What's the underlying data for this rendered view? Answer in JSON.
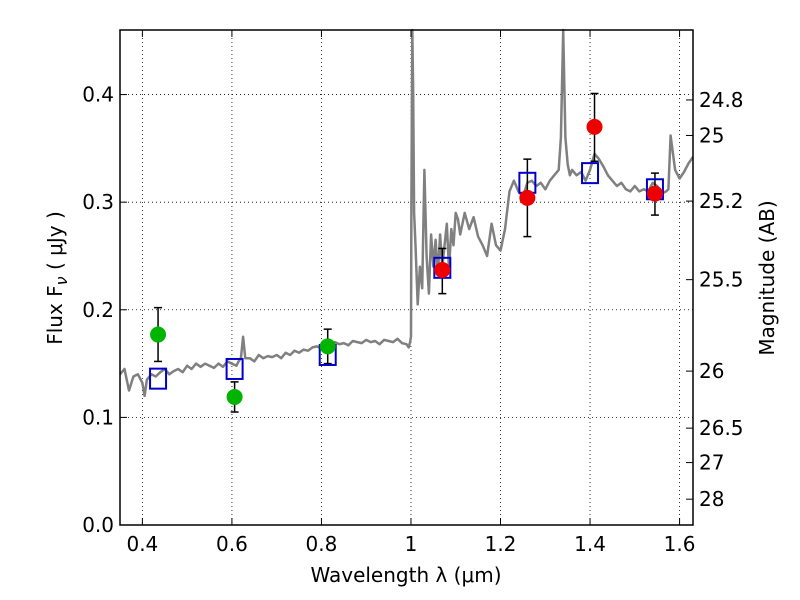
{
  "chart_data": {
    "type": "scatter",
    "xlabel": "Wavelength  λ (μm)",
    "ylabel": "Flux  F",
    "ylabel_sub": "ν",
    "ylabel_unit": "  ( μJy )",
    "y2label": "Magnitude (AB)",
    "xlim": [
      0.35,
      1.63
    ],
    "ylim": [
      0.0,
      0.46
    ],
    "x_ticks": [
      0.4,
      0.6,
      0.8,
      1.0,
      1.2,
      1.4,
      1.6
    ],
    "x_tick_labels": [
      "0.4",
      "0.6",
      "0.8",
      "1",
      "1.2",
      "1.4",
      "1.6"
    ],
    "y_ticks": [
      0.0,
      0.1,
      0.2,
      0.3,
      0.4
    ],
    "y_tick_labels": [
      "0.0",
      "0.1",
      "0.2",
      "0.3",
      "0.4"
    ],
    "y2_ticks": [
      {
        "label": "24.8",
        "flux": 0.395
      },
      {
        "label": "25",
        "flux": 0.362
      },
      {
        "label": "25.2",
        "flux": 0.301
      },
      {
        "label": "25.5",
        "flux": 0.228
      },
      {
        "label": "26",
        "flux": 0.143
      },
      {
        "label": "26.5",
        "flux": 0.09
      },
      {
        "label": "27",
        "flux": 0.058
      },
      {
        "label": "28",
        "flux": 0.024
      }
    ],
    "grid": true,
    "colors": {
      "model": "#808080",
      "model_points": "#0000cc",
      "optical_obs": "#00b400",
      "nir_obs": "#ee0000",
      "errorbar": "#000000"
    },
    "series": [
      {
        "role": "observed-optical",
        "marker": "circle",
        "points": [
          {
            "x": 0.435,
            "y": 0.177,
            "yerr_lo": 0.152,
            "yerr_hi": 0.202
          },
          {
            "x": 0.606,
            "y": 0.119,
            "yerr_lo": 0.105,
            "yerr_hi": 0.133
          },
          {
            "x": 0.814,
            "y": 0.166,
            "yerr_lo": 0.15,
            "yerr_hi": 0.182
          }
        ]
      },
      {
        "role": "observed-nir",
        "marker": "circle",
        "points": [
          {
            "x": 1.07,
            "y": 0.237,
            "yerr_lo": 0.215,
            "yerr_hi": 0.257
          },
          {
            "x": 1.26,
            "y": 0.304,
            "yerr_lo": 0.268,
            "yerr_hi": 0.34
          },
          {
            "x": 1.41,
            "y": 0.37,
            "yerr_lo": 0.338,
            "yerr_hi": 0.401
          },
          {
            "x": 1.545,
            "y": 0.308,
            "yerr_lo": 0.288,
            "yerr_hi": 0.327
          }
        ]
      },
      {
        "role": "model-synthetic-photometry",
        "marker": "open-square",
        "points": [
          {
            "x": 0.435,
            "y": 0.136
          },
          {
            "x": 0.606,
            "y": 0.145
          },
          {
            "x": 0.814,
            "y": 0.158
          },
          {
            "x": 1.07,
            "y": 0.239
          },
          {
            "x": 1.26,
            "y": 0.318
          },
          {
            "x": 1.4,
            "y": 0.327
          },
          {
            "x": 1.545,
            "y": 0.312
          }
        ]
      },
      {
        "role": "model-sed",
        "marker": "line",
        "x": [
          0.35,
          0.36,
          0.37,
          0.38,
          0.39,
          0.4,
          0.405,
          0.41,
          0.42,
          0.43,
          0.44,
          0.45,
          0.46,
          0.47,
          0.48,
          0.49,
          0.5,
          0.51,
          0.52,
          0.53,
          0.54,
          0.55,
          0.56,
          0.57,
          0.58,
          0.59,
          0.6,
          0.61,
          0.615,
          0.62,
          0.625,
          0.63,
          0.64,
          0.65,
          0.66,
          0.67,
          0.68,
          0.69,
          0.7,
          0.71,
          0.72,
          0.73,
          0.74,
          0.75,
          0.76,
          0.77,
          0.78,
          0.79,
          0.8,
          0.81,
          0.82,
          0.83,
          0.84,
          0.85,
          0.86,
          0.87,
          0.88,
          0.89,
          0.9,
          0.91,
          0.92,
          0.93,
          0.94,
          0.95,
          0.96,
          0.97,
          0.98,
          0.99,
          0.995,
          0.998,
          1.0,
          1.001,
          1.003,
          1.005,
          1.007,
          1.01,
          1.015,
          1.02,
          1.025,
          1.03,
          1.035,
          1.04,
          1.045,
          1.05,
          1.055,
          1.06,
          1.065,
          1.07,
          1.08,
          1.085,
          1.09,
          1.095,
          1.1,
          1.105,
          1.11,
          1.12,
          1.13,
          1.14,
          1.15,
          1.16,
          1.17,
          1.18,
          1.19,
          1.2,
          1.21,
          1.22,
          1.23,
          1.24,
          1.25,
          1.26,
          1.27,
          1.28,
          1.29,
          1.3,
          1.31,
          1.32,
          1.33,
          1.335,
          1.34,
          1.345,
          1.35,
          1.355,
          1.36,
          1.37,
          1.38,
          1.39,
          1.4,
          1.41,
          1.42,
          1.43,
          1.44,
          1.45,
          1.46,
          1.47,
          1.48,
          1.49,
          1.5,
          1.51,
          1.52,
          1.53,
          1.54,
          1.55,
          1.56,
          1.57,
          1.575,
          1.58,
          1.59,
          1.6,
          1.61,
          1.62,
          1.63
        ],
        "y": [
          0.14,
          0.145,
          0.125,
          0.138,
          0.14,
          0.132,
          0.12,
          0.135,
          0.14,
          0.138,
          0.142,
          0.145,
          0.14,
          0.143,
          0.145,
          0.142,
          0.148,
          0.145,
          0.15,
          0.147,
          0.15,
          0.148,
          0.146,
          0.15,
          0.147,
          0.152,
          0.15,
          0.148,
          0.152,
          0.155,
          0.175,
          0.155,
          0.155,
          0.152,
          0.158,
          0.155,
          0.157,
          0.156,
          0.158,
          0.155,
          0.16,
          0.158,
          0.162,
          0.16,
          0.163,
          0.162,
          0.165,
          0.166,
          0.164,
          0.168,
          0.166,
          0.17,
          0.168,
          0.169,
          0.167,
          0.171,
          0.17,
          0.169,
          0.172,
          0.17,
          0.171,
          0.168,
          0.172,
          0.171,
          0.17,
          0.173,
          0.169,
          0.168,
          0.165,
          0.17,
          0.175,
          0.3,
          0.46,
          0.4,
          0.29,
          0.26,
          0.205,
          0.24,
          0.22,
          0.33,
          0.25,
          0.215,
          0.27,
          0.24,
          0.265,
          0.232,
          0.27,
          0.24,
          0.28,
          0.238,
          0.275,
          0.26,
          0.29,
          0.284,
          0.27,
          0.29,
          0.275,
          0.286,
          0.268,
          0.26,
          0.25,
          0.28,
          0.26,
          0.255,
          0.275,
          0.31,
          0.32,
          0.31,
          0.305,
          0.318,
          0.32,
          0.315,
          0.318,
          0.312,
          0.32,
          0.325,
          0.33,
          0.36,
          0.46,
          0.36,
          0.335,
          0.325,
          0.33,
          0.325,
          0.328,
          0.32,
          0.33,
          0.345,
          0.34,
          0.333,
          0.325,
          0.32,
          0.315,
          0.318,
          0.312,
          0.31,
          0.315,
          0.31,
          0.312,
          0.31,
          0.318,
          0.315,
          0.308,
          0.31,
          0.312,
          0.362,
          0.33,
          0.322,
          0.328,
          0.336,
          0.342
        ]
      }
    ]
  }
}
